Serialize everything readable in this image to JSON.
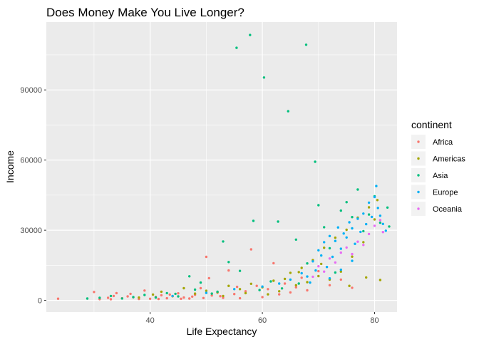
{
  "chart_data": {
    "type": "scatter",
    "title": "Does Money Make You Live Longer?",
    "xlabel": "Life Expectancy",
    "ylabel": "Income",
    "xlim": [
      21.5,
      84.0
    ],
    "ylim": [
      -5000,
      119000
    ],
    "x_ticks": [
      40,
      60,
      80
    ],
    "y_ticks": [
      0,
      30000,
      60000,
      90000
    ],
    "y_tick_labels": [
      "0",
      "30000",
      "60000",
      "90000"
    ],
    "x_tick_labels": [
      "40",
      "60",
      "80"
    ],
    "grid": true,
    "legend": {
      "title": "continent",
      "position": "right",
      "entries": [
        "Africa",
        "Americas",
        "Asia",
        "Europe",
        "Oceania"
      ]
    },
    "colors": {
      "Africa": "#F8766D",
      "Americas": "#A3A500",
      "Asia": "#00BF7D",
      "Europe": "#00B0F6",
      "Oceania": "#E76BF3"
    },
    "series": [
      {
        "name": "Africa",
        "points": [
          [
            23.6,
            740
          ],
          [
            30.0,
            3600
          ],
          [
            31.0,
            520
          ],
          [
            32.5,
            1100
          ],
          [
            33.0,
            480
          ],
          [
            34.0,
            3100
          ],
          [
            35.0,
            900
          ],
          [
            36.0,
            1700
          ],
          [
            37.0,
            1300
          ],
          [
            38.0,
            600
          ],
          [
            39.0,
            4200
          ],
          [
            40.0,
            700
          ],
          [
            41.0,
            1500
          ],
          [
            42.0,
            2200
          ],
          [
            43.0,
            900
          ],
          [
            44.0,
            1800
          ],
          [
            45.0,
            3000
          ],
          [
            46.0,
            1200
          ],
          [
            47.0,
            800
          ],
          [
            48.0,
            2400
          ],
          [
            49.0,
            5200
          ],
          [
            50.0,
            18600
          ],
          [
            50.5,
            9500
          ],
          [
            51.0,
            2100
          ],
          [
            52.0,
            3300
          ],
          [
            53.0,
            1100
          ],
          [
            54.0,
            12800
          ],
          [
            55.0,
            2700
          ],
          [
            56.0,
            900
          ],
          [
            57.0,
            3900
          ],
          [
            58.0,
            21800
          ],
          [
            59.0,
            6200
          ],
          [
            60.0,
            1400
          ],
          [
            61.0,
            4800
          ],
          [
            62.0,
            15900
          ],
          [
            63.0,
            2600
          ],
          [
            64.0,
            7200
          ],
          [
            65.0,
            3400
          ],
          [
            66.0,
            5600
          ],
          [
            67.0,
            9700
          ],
          [
            68.0,
            4300
          ],
          [
            70.0,
            12500
          ],
          [
            72.0,
            6500
          ],
          [
            74.0,
            8900
          ],
          [
            76.0,
            5400
          ],
          [
            33.5,
            1900
          ],
          [
            36.5,
            2800
          ],
          [
            41.5,
            600
          ],
          [
            43.5,
            2500
          ],
          [
            45.5,
            700
          ],
          [
            47.5,
            1600
          ],
          [
            49.5,
            1000
          ],
          [
            52.5,
            1800
          ],
          [
            55.5,
            5800
          ]
        ]
      },
      {
        "name": "Americas",
        "points": [
          [
            38.0,
            1200
          ],
          [
            40.5,
            2500
          ],
          [
            42.0,
            3700
          ],
          [
            44.0,
            1800
          ],
          [
            46.0,
            5200
          ],
          [
            48.0,
            2900
          ],
          [
            50.0,
            4100
          ],
          [
            52.0,
            3500
          ],
          [
            54.0,
            6200
          ],
          [
            56.0,
            4800
          ],
          [
            58.0,
            7100
          ],
          [
            60.0,
            5600
          ],
          [
            62.0,
            8400
          ],
          [
            63.0,
            3900
          ],
          [
            64.0,
            9200
          ],
          [
            65.0,
            11800
          ],
          [
            66.0,
            6500
          ],
          [
            67.0,
            13900
          ],
          [
            68.0,
            7800
          ],
          [
            69.0,
            17200
          ],
          [
            70.0,
            10400
          ],
          [
            71.0,
            22500
          ],
          [
            72.0,
            8900
          ],
          [
            73.0,
            26800
          ],
          [
            74.0,
            12300
          ],
          [
            75.0,
            30200
          ],
          [
            76.0,
            18700
          ],
          [
            77.0,
            35400
          ],
          [
            78.0,
            24900
          ],
          [
            79.0,
            39800
          ],
          [
            80.0,
            34600
          ],
          [
            80.5,
            42900
          ],
          [
            81.0,
            8700
          ],
          [
            75.5,
            6200
          ],
          [
            78.5,
            9800
          ],
          [
            61.0,
            2600
          ],
          [
            57.0,
            3100
          ],
          [
            53.0,
            1900
          ],
          [
            66.5,
            12100
          ],
          [
            70.5,
            15600
          ]
        ]
      },
      {
        "name": "Asia",
        "points": [
          [
            28.8,
            780
          ],
          [
            31.0,
            1100
          ],
          [
            33.0,
            1900
          ],
          [
            35.0,
            820
          ],
          [
            37.0,
            1400
          ],
          [
            39.0,
            2300
          ],
          [
            41.0,
            1200
          ],
          [
            43.0,
            3100
          ],
          [
            45.0,
            1700
          ],
          [
            47.0,
            10300
          ],
          [
            49.0,
            7600
          ],
          [
            51.0,
            2900
          ],
          [
            53.0,
            25200
          ],
          [
            54.0,
            16400
          ],
          [
            55.4,
            108000
          ],
          [
            57.8,
            113500
          ],
          [
            58.4,
            34000
          ],
          [
            60.3,
            95300
          ],
          [
            62.8,
            33700
          ],
          [
            64.6,
            80900
          ],
          [
            66.0,
            26000
          ],
          [
            67.8,
            109300
          ],
          [
            68.0,
            15800
          ],
          [
            69.4,
            59300
          ],
          [
            70.0,
            40700
          ],
          [
            71.0,
            31300
          ],
          [
            72.0,
            22300
          ],
          [
            73.0,
            11900
          ],
          [
            74.0,
            38400
          ],
          [
            75.0,
            42000
          ],
          [
            76.0,
            35600
          ],
          [
            77.0,
            47400
          ],
          [
            78.0,
            29600
          ],
          [
            79.0,
            36700
          ],
          [
            80.0,
            44500
          ],
          [
            81.0,
            33200
          ],
          [
            82.3,
            39700
          ],
          [
            82.6,
            31600
          ],
          [
            63.5,
            5100
          ],
          [
            66.5,
            7200
          ],
          [
            59.5,
            4400
          ],
          [
            56.0,
            12600
          ],
          [
            61.5,
            8100
          ],
          [
            52.0,
            3700
          ],
          [
            48.0,
            4600
          ],
          [
            44.5,
            2800
          ]
        ]
      },
      {
        "name": "Europe",
        "points": [
          [
            44.0,
            1900
          ],
          [
            50.0,
            3200
          ],
          [
            55.0,
            4800
          ],
          [
            60.0,
            5900
          ],
          [
            63.0,
            7200
          ],
          [
            65.0,
            8900
          ],
          [
            67.0,
            11600
          ],
          [
            68.0,
            10200
          ],
          [
            69.0,
            16700
          ],
          [
            69.5,
            12800
          ],
          [
            70.0,
            21400
          ],
          [
            70.5,
            19200
          ],
          [
            71.0,
            24900
          ],
          [
            71.5,
            14300
          ],
          [
            72.0,
            27500
          ],
          [
            72.5,
            18600
          ],
          [
            73.0,
            25400
          ],
          [
            73.5,
            31200
          ],
          [
            74.0,
            22100
          ],
          [
            74.5,
            28600
          ],
          [
            75.0,
            26900
          ],
          [
            75.5,
            33400
          ],
          [
            76.0,
            30800
          ],
          [
            76.5,
            24200
          ],
          [
            77.0,
            34900
          ],
          [
            77.5,
            29300
          ],
          [
            78.0,
            37100
          ],
          [
            78.5,
            32600
          ],
          [
            79.0,
            41800
          ],
          [
            79.5,
            35700
          ],
          [
            80.0,
            44200
          ],
          [
            80.3,
            48900
          ],
          [
            80.6,
            39500
          ],
          [
            81.0,
            36200
          ],
          [
            81.5,
            32700
          ],
          [
            82.0,
            29800
          ],
          [
            68.5,
            7600
          ],
          [
            72.0,
            9400
          ],
          [
            74.0,
            13100
          ],
          [
            76.0,
            16900
          ]
        ]
      },
      {
        "name": "Oceania",
        "points": [
          [
            69.0,
            10100
          ],
          [
            70.0,
            14600
          ],
          [
            71.0,
            12300
          ],
          [
            72.0,
            17900
          ],
          [
            73.0,
            16200
          ],
          [
            74.0,
            20400
          ],
          [
            75.0,
            22600
          ],
          [
            76.0,
            19800
          ],
          [
            77.0,
            25100
          ],
          [
            78.0,
            23700
          ],
          [
            79.0,
            28400
          ],
          [
            80.0,
            31900
          ],
          [
            81.0,
            34300
          ],
          [
            81.5,
            29200
          ]
        ]
      }
    ]
  }
}
